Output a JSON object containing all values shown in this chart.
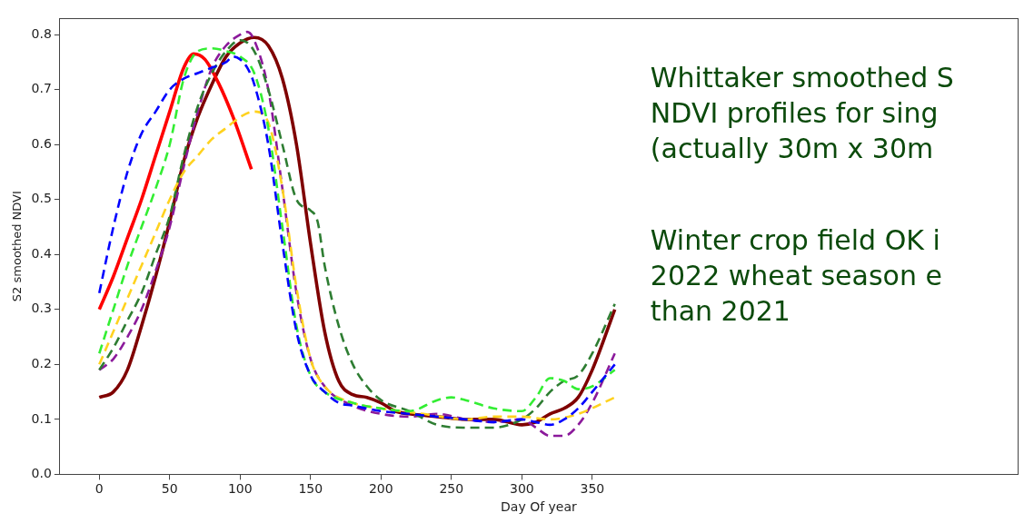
{
  "chart_data": {
    "type": "line",
    "xlabel": "Day Of year",
    "ylabel": "S2 smoothed NDVI",
    "xlim": [
      -28,
      652
    ],
    "xticks": [
      0,
      50,
      100,
      150,
      200,
      250,
      300,
      350
    ],
    "ylim": [
      0,
      0.83
    ],
    "yticks": [
      {
        "value": 0,
        "label": "0.0"
      },
      0.1,
      0.2,
      0.3,
      0.4,
      0.5,
      0.6,
      0.7,
      0.8
    ],
    "grid": false,
    "legend": false,
    "marker": "none",
    "annotations": [
      "Whittaker smoothed S\nNDVI profiles for sing\n(actually 30m x 30m",
      "Winter crop field OK i\n2022 wheat season e\nthan 2021"
    ],
    "series": [
      {
        "color": "#0000ff",
        "line_style": "dashed",
        "x": [
          0,
          10,
          20,
          30,
          40,
          50,
          60,
          70,
          80,
          90,
          95,
          100,
          105,
          110,
          120,
          130,
          140,
          150,
          160,
          170,
          180,
          200,
          220,
          240,
          260,
          280,
          300,
          310,
          320,
          330,
          340,
          350,
          366
        ],
        "values": [
          0.33,
          0.45,
          0.55,
          0.62,
          0.66,
          0.7,
          0.72,
          0.73,
          0.74,
          0.75,
          0.76,
          0.755,
          0.74,
          0.71,
          0.6,
          0.42,
          0.26,
          0.18,
          0.15,
          0.13,
          0.125,
          0.115,
          0.11,
          0.105,
          0.1,
          0.095,
          0.1,
          0.095,
          0.09,
          0.1,
          0.12,
          0.15,
          0.2
        ]
      },
      {
        "color": "#33ee33",
        "line_style": "dashed",
        "x": [
          0,
          10,
          20,
          30,
          40,
          50,
          60,
          70,
          80,
          90,
          100,
          110,
          120,
          130,
          140,
          150,
          160,
          180,
          200,
          220,
          240,
          250,
          260,
          280,
          300,
          310,
          320,
          330,
          340,
          350,
          366
        ],
        "values": [
          0.22,
          0.3,
          0.38,
          0.45,
          0.52,
          0.6,
          0.72,
          0.77,
          0.775,
          0.77,
          0.76,
          0.73,
          0.63,
          0.45,
          0.27,
          0.18,
          0.15,
          0.13,
          0.12,
          0.115,
          0.135,
          0.14,
          0.135,
          0.12,
          0.115,
          0.14,
          0.175,
          0.17,
          0.155,
          0.16,
          0.19
        ]
      },
      {
        "color": "#ffd21f",
        "line_style": "dashed",
        "x": [
          0,
          10,
          20,
          30,
          40,
          50,
          60,
          70,
          80,
          90,
          100,
          110,
          120,
          130,
          140,
          150,
          160,
          180,
          200,
          230,
          260,
          280,
          300,
          320,
          340,
          366
        ],
        "values": [
          0.2,
          0.26,
          0.32,
          0.38,
          0.44,
          0.5,
          0.55,
          0.58,
          0.61,
          0.63,
          0.65,
          0.66,
          0.64,
          0.52,
          0.34,
          0.21,
          0.16,
          0.13,
          0.12,
          0.11,
          0.1,
          0.105,
          0.105,
          0.1,
          0.11,
          0.14
        ]
      },
      {
        "color": "#2e7d32",
        "line_style": "dashed",
        "x": [
          0,
          10,
          20,
          30,
          40,
          50,
          60,
          70,
          80,
          90,
          100,
          110,
          120,
          130,
          140,
          150,
          155,
          160,
          170,
          180,
          190,
          200,
          220,
          240,
          260,
          280,
          300,
          310,
          320,
          330,
          340,
          350,
          366
        ],
        "values": [
          0.19,
          0.23,
          0.28,
          0.33,
          0.4,
          0.47,
          0.58,
          0.67,
          0.73,
          0.77,
          0.79,
          0.77,
          0.7,
          0.6,
          0.5,
          0.48,
          0.46,
          0.38,
          0.27,
          0.2,
          0.16,
          0.135,
          0.115,
          0.09,
          0.085,
          0.085,
          0.1,
          0.12,
          0.15,
          0.17,
          0.18,
          0.22,
          0.31
        ]
      },
      {
        "color": "#8b1a9b",
        "line_style": "dashed",
        "x": [
          0,
          10,
          20,
          30,
          40,
          50,
          60,
          70,
          80,
          90,
          100,
          105,
          110,
          120,
          130,
          140,
          150,
          160,
          180,
          200,
          220,
          240,
          260,
          280,
          300,
          310,
          320,
          330,
          340,
          350,
          366
        ],
        "values": [
          0.19,
          0.21,
          0.25,
          0.3,
          0.37,
          0.45,
          0.56,
          0.66,
          0.74,
          0.78,
          0.8,
          0.805,
          0.79,
          0.7,
          0.52,
          0.33,
          0.21,
          0.16,
          0.125,
          0.11,
          0.105,
          0.11,
          0.1,
          0.095,
          0.1,
          0.085,
          0.07,
          0.07,
          0.09,
          0.13,
          0.22
        ]
      },
      {
        "color": "#ff0000",
        "line_style": "solid",
        "x": [
          0,
          10,
          20,
          30,
          40,
          50,
          60,
          67,
          75,
          85,
          95,
          108
        ],
        "values": [
          0.3,
          0.36,
          0.43,
          0.5,
          0.58,
          0.66,
          0.74,
          0.765,
          0.755,
          0.71,
          0.65,
          0.555
        ]
      },
      {
        "color": "#7f0000",
        "line_style": "solid",
        "x": [
          0,
          10,
          20,
          30,
          40,
          50,
          60,
          70,
          80,
          90,
          100,
          110,
          120,
          130,
          140,
          150,
          160,
          170,
          180,
          190,
          200,
          210,
          220,
          240,
          260,
          280,
          300,
          310,
          320,
          330,
          340,
          350,
          366
        ],
        "values": [
          0.14,
          0.15,
          0.19,
          0.27,
          0.36,
          0.46,
          0.57,
          0.65,
          0.71,
          0.76,
          0.785,
          0.795,
          0.78,
          0.72,
          0.6,
          0.42,
          0.26,
          0.17,
          0.145,
          0.14,
          0.13,
          0.115,
          0.11,
          0.105,
          0.1,
          0.1,
          0.09,
          0.095,
          0.11,
          0.12,
          0.14,
          0.19,
          0.3
        ]
      }
    ]
  }
}
